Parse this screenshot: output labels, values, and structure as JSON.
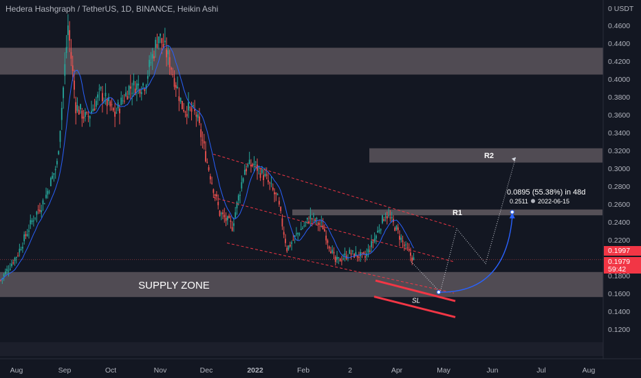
{
  "header": {
    "title": "Hedera Hashgraph / TetherUS, 1D, BINANCE, Heikin Ashi"
  },
  "chart_data": {
    "type": "candlestick",
    "pair": "Hedera Hashgraph / TetherUS",
    "interval": "1D",
    "exchange": "BINANCE",
    "candle_type": "Heikin Ashi",
    "y_axis": {
      "unit_label": "0 USDT",
      "ticks": [
        "0.4600",
        "0.4400",
        "0.4200",
        "0.4000",
        "0.3800",
        "0.3600",
        "0.3400",
        "0.3200",
        "0.3000",
        "0.2800",
        "0.2600",
        "0.2400",
        "0.2200",
        "0.1800",
        "0.1600",
        "0.1400",
        "0.1200"
      ],
      "ylim": [
        0.105,
        0.475
      ]
    },
    "x_axis": {
      "ticks": [
        "Aug",
        "Sep",
        "Oct",
        "Nov",
        "Dec",
        "2022",
        "Feb",
        "2",
        "Apr",
        "May",
        "Jun",
        "Jul",
        "Aug"
      ]
    },
    "price_labels": [
      {
        "text": "0.1997",
        "value": 0.1997,
        "color": "#f23645"
      },
      {
        "text": "0.1979",
        "value": 0.1979,
        "color": "#f23645"
      },
      {
        "text": "59:42",
        "color": "#f23645"
      }
    ],
    "zones": [
      {
        "label": "",
        "from": 0.405,
        "to": 0.435
      },
      {
        "label": "SUPPLY ZONE",
        "from": 0.156,
        "to": 0.184
      },
      {
        "label": "R1",
        "from": 0.2475,
        "to": 0.254
      },
      {
        "label": "R2",
        "from": 0.3065,
        "to": 0.3225
      }
    ],
    "projection": {
      "label_line1": "0.0895 (55.38%) in 48d",
      "label_line2": "0.2511",
      "label_date": "2022-06-15",
      "start": {
        "date": "2022-05-01",
        "price": 0.1615
      },
      "end": {
        "date": "2022-06-17",
        "price": 0.2511
      }
    },
    "stop_loss_label": "SL",
    "series": [
      {
        "name": "Heikin Ashi candles",
        "color_up": "#26a69a",
        "color_down": "#ef5350"
      },
      {
        "name": "moving average",
        "color": "#2962ff"
      }
    ]
  },
  "colors": {
    "background": "#131722",
    "zone_fill": "#8d7f84",
    "channel": "#f23645",
    "axis_text": "#b2b5be",
    "dotted": "#d1d4dc"
  }
}
